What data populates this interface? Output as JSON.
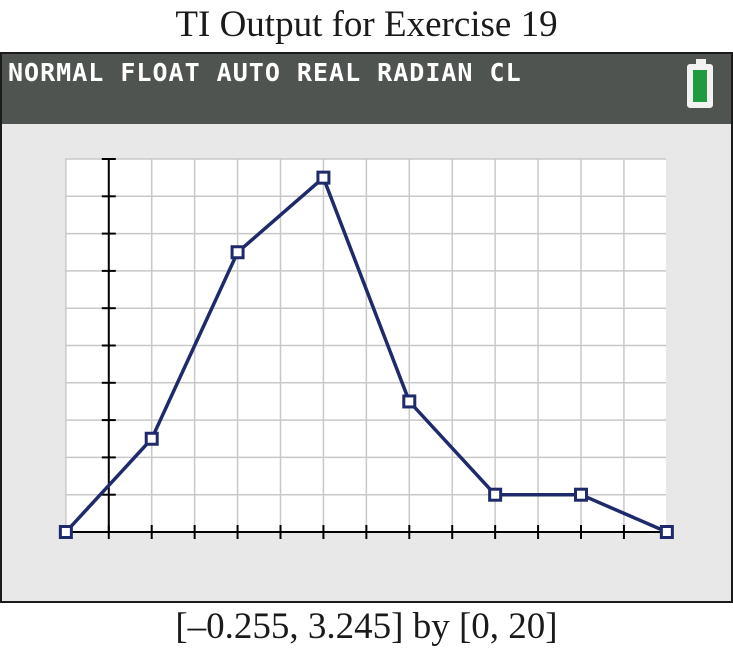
{
  "title": "TI Output for Exercise 19",
  "status_bar": {
    "text": "NORMAL FLOAT AUTO REAL RADIAN CL",
    "battery_icon": "battery-full-icon",
    "battery_level": 1.0
  },
  "window_caption": "[–0.255, 3.245] by [0, 20]",
  "colors": {
    "line": "#1f2a6b",
    "screen_bg": "#e8e8e8",
    "plot_bg": "#ffffff",
    "grid": "#c8c8c8",
    "status_bg": "#4f5450",
    "battery": "#1f9a3e"
  },
  "chart_data": {
    "type": "line",
    "xlim": [
      -0.255,
      3.245
    ],
    "ylim": [
      0,
      20
    ],
    "xscl": 0.25,
    "yscl": 2,
    "grid": true,
    "marker": "square",
    "x": [
      -0.25,
      0.25,
      0.75,
      1.25,
      1.75,
      2.25,
      2.75,
      3.25
    ],
    "y": [
      0,
      5,
      15,
      19,
      7,
      2,
      2,
      0
    ]
  }
}
